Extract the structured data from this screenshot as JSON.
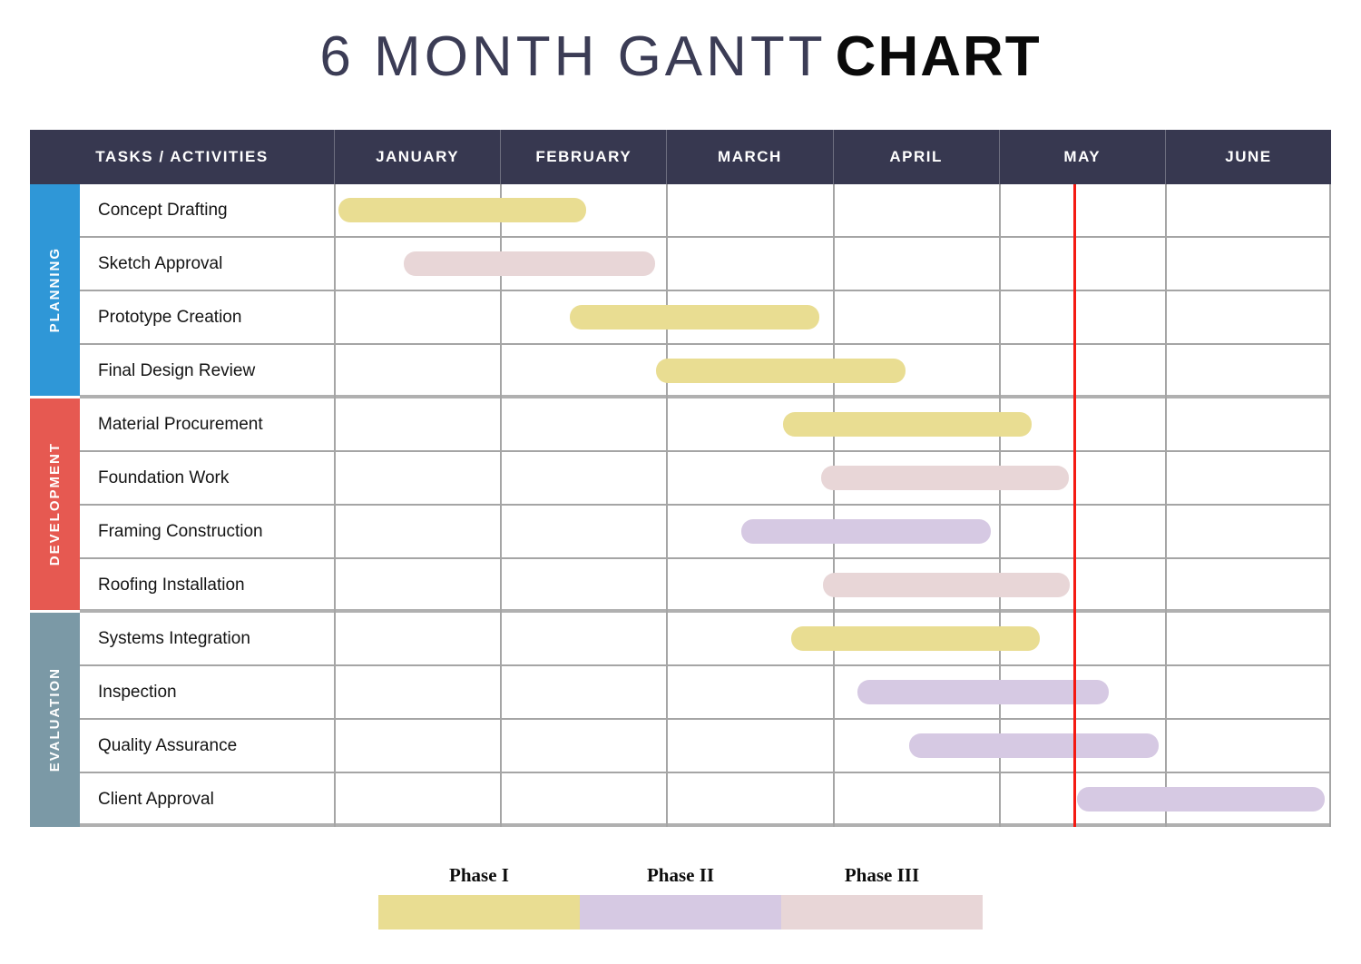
{
  "title": {
    "prefix": "6 MONTH GANTT",
    "emphasis": "CHART"
  },
  "table": {
    "task_column_header": "TASKS / ACTIVITIES"
  },
  "colors": {
    "header_bg": "#373850",
    "grid": "#a5a5a5",
    "title_text": "#3b3c55",
    "title_emphasis": "#0a0a0a",
    "marker_red": "#f41a12",
    "planning_blue": "#2f97d7",
    "development_red": "#e65951",
    "evaluation_slate": "#7b99a6"
  },
  "chart_data": {
    "type": "gantt",
    "title": "6 MONTH GANTT CHART",
    "x_unit": "months",
    "x_categories": [
      "JANUARY",
      "FEBRUARY",
      "MARCH",
      "APRIL",
      "MAY",
      "JUNE"
    ],
    "x_range_months": [
      0,
      6
    ],
    "current_position_marker_month": 4.45,
    "marker_color": "#f41a12",
    "grid": true,
    "legend_position": "bottom",
    "legend": [
      {
        "label": "Phase I",
        "color": "#e9dd92"
      },
      {
        "label": "Phase II",
        "color": "#d6c9e3"
      },
      {
        "label": "Phase III",
        "color": "#e8d6d7"
      }
    ],
    "groups": [
      {
        "name": "PLANNING",
        "color": "#2f97d7",
        "tasks": [
          {
            "label": "Concept Drafting",
            "start_month": 0.03,
            "end_month": 1.52,
            "phase": "Phase I"
          },
          {
            "label": "Sketch Approval",
            "start_month": 0.42,
            "end_month": 1.93,
            "phase": "Phase III"
          },
          {
            "label": "Prototype Creation",
            "start_month": 1.42,
            "end_month": 2.92,
            "phase": "Phase I"
          },
          {
            "label": "Final Design Review",
            "start_month": 1.94,
            "end_month": 3.44,
            "phase": "Phase I"
          }
        ]
      },
      {
        "name": "DEVELOPMENT",
        "color": "#e65951",
        "tasks": [
          {
            "label": "Material Procurement",
            "start_month": 2.7,
            "end_month": 4.2,
            "phase": "Phase I"
          },
          {
            "label": "Foundation Work",
            "start_month": 2.93,
            "end_month": 4.42,
            "phase": "Phase III"
          },
          {
            "label": "Framing Construction",
            "start_month": 2.45,
            "end_month": 3.95,
            "phase": "Phase II"
          },
          {
            "label": "Roofing Installation",
            "start_month": 2.94,
            "end_month": 4.43,
            "phase": "Phase III"
          }
        ]
      },
      {
        "name": "EVALUATION",
        "color": "#7b99a6",
        "tasks": [
          {
            "label": "Systems Integration",
            "start_month": 2.75,
            "end_month": 4.25,
            "phase": "Phase I"
          },
          {
            "label": "Inspection",
            "start_month": 3.15,
            "end_month": 4.66,
            "phase": "Phase II"
          },
          {
            "label": "Quality Assurance",
            "start_month": 3.46,
            "end_month": 4.96,
            "phase": "Phase II"
          },
          {
            "label": "Client Approval",
            "start_month": 4.47,
            "end_month": 5.96,
            "phase": "Phase II"
          }
        ]
      }
    ]
  }
}
